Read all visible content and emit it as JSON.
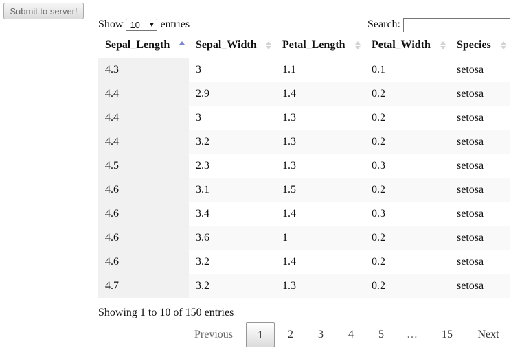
{
  "toolbar": {
    "submit_label": "Submit to server!"
  },
  "length": {
    "show": "Show",
    "value": "10",
    "entries": "entries"
  },
  "search": {
    "label": "Search:",
    "value": ""
  },
  "table": {
    "columns": [
      "Sepal_Length",
      "Sepal_Width",
      "Petal_Length",
      "Petal_Width",
      "Species"
    ],
    "sorted_column": "Sepal_Length",
    "sort_direction": "ascending",
    "rows": [
      [
        "4.3",
        "3",
        "1.1",
        "0.1",
        "setosa"
      ],
      [
        "4.4",
        "2.9",
        "1.4",
        "0.2",
        "setosa"
      ],
      [
        "4.4",
        "3",
        "1.3",
        "0.2",
        "setosa"
      ],
      [
        "4.4",
        "3.2",
        "1.3",
        "0.2",
        "setosa"
      ],
      [
        "4.5",
        "2.3",
        "1.3",
        "0.3",
        "setosa"
      ],
      [
        "4.6",
        "3.1",
        "1.5",
        "0.2",
        "setosa"
      ],
      [
        "4.6",
        "3.4",
        "1.4",
        "0.3",
        "setosa"
      ],
      [
        "4.6",
        "3.6",
        "1",
        "0.2",
        "setosa"
      ],
      [
        "4.6",
        "3.2",
        "1.4",
        "0.2",
        "setosa"
      ],
      [
        "4.7",
        "3.2",
        "1.3",
        "0.2",
        "setosa"
      ]
    ]
  },
  "info": "Showing 1 to 10 of 150 entries",
  "pagination": {
    "previous": "Previous",
    "pages": [
      "1",
      "2",
      "3",
      "4",
      "5",
      "…",
      "15"
    ],
    "current": "1",
    "next": "Next"
  },
  "colors": {
    "sort_active": "#7a86d9",
    "sort_inactive": "#d3d3d3"
  }
}
